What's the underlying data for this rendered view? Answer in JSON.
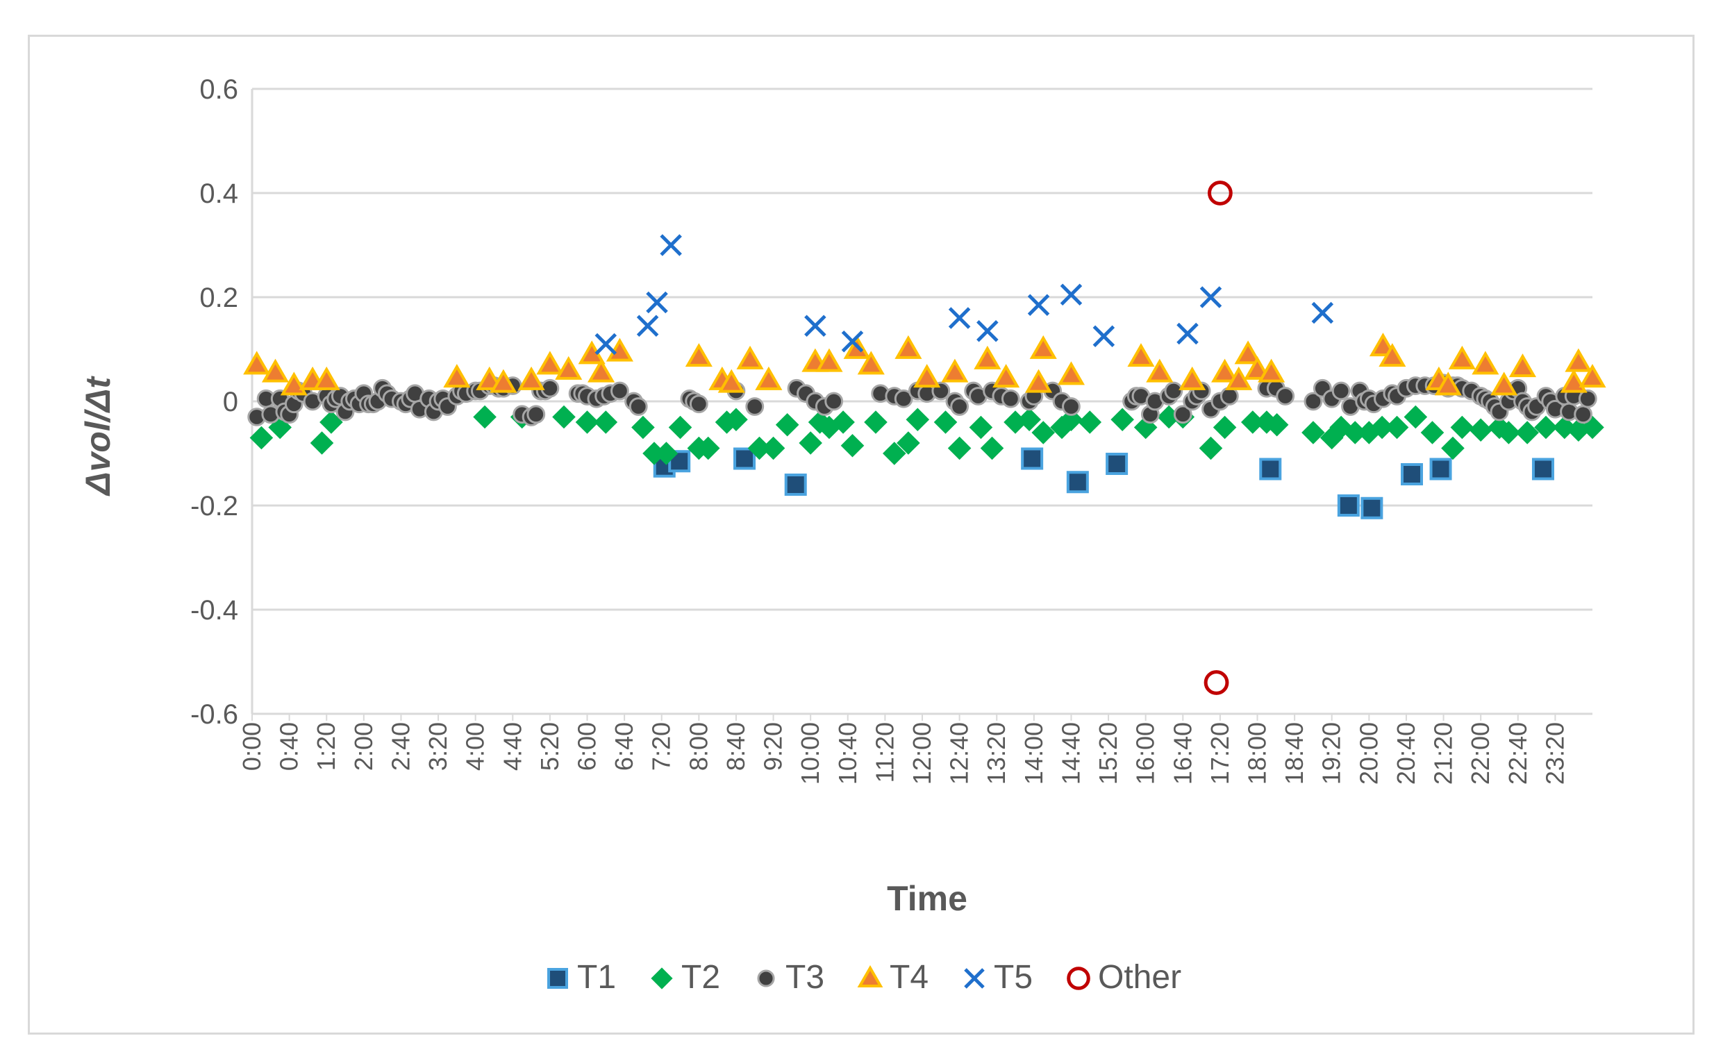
{
  "chart_data": {
    "type": "scatter",
    "xlabel": "Time",
    "ylabel": "Δvol/Δt",
    "x_unit": "minutes since 0:00",
    "xlim": [
      0,
      1440
    ],
    "ylim": [
      -0.6,
      0.6
    ],
    "y_ticks": [
      {
        "value": 0.6,
        "label": "0.6"
      },
      {
        "value": 0.4,
        "label": "0.4"
      },
      {
        "value": 0.2,
        "label": "0.2"
      },
      {
        "value": 0,
        "label": "0"
      },
      {
        "value": -0.2,
        "label": "-0.2"
      },
      {
        "value": -0.4,
        "label": "-0.4"
      },
      {
        "value": -0.6,
        "label": "-0.6"
      }
    ],
    "x_ticks": [
      "0:00",
      "0:40",
      "1:20",
      "2:00",
      "2:40",
      "3:20",
      "4:00",
      "4:40",
      "5:20",
      "6:00",
      "6:40",
      "7:20",
      "8:00",
      "8:40",
      "9:20",
      "10:00",
      "10:40",
      "11:20",
      "12:00",
      "12:40",
      "13:20",
      "14:00",
      "14:40",
      "15:20",
      "16:00",
      "16:40",
      "17:20",
      "18:00",
      "18:40",
      "19:20",
      "20:00",
      "20:40",
      "21:20",
      "22:00",
      "22:40",
      "23:20"
    ],
    "grid": true,
    "legend_position": "bottom",
    "series": [
      {
        "name": "T1",
        "marker": "square",
        "color": "#1f77b4",
        "x": [
          443,
          459,
          529,
          584,
          838,
          887,
          929,
          1094,
          1178,
          1203,
          1246,
          1277,
          1387
        ],
        "y": [
          -0.125,
          -0.115,
          -0.11,
          -0.16,
          -0.11,
          -0.155,
          -0.12,
          -0.13,
          -0.2,
          -0.205,
          -0.14,
          -0.13,
          -0.13
        ]
      },
      {
        "name": "T2",
        "marker": "diamond",
        "color": "#00b050",
        "x": [
          10,
          30,
          75,
          85,
          250,
          290,
          335,
          360,
          380,
          420,
          432,
          445,
          460,
          480,
          490,
          510,
          520,
          545,
          560,
          575,
          600,
          610,
          620,
          635,
          645,
          670,
          690,
          705,
          715,
          745,
          760,
          783,
          795,
          820,
          835,
          850,
          870,
          880,
          900,
          935,
          960,
          985,
          1000,
          1030,
          1045,
          1075,
          1090,
          1101,
          1140,
          1160,
          1170,
          1185,
          1200,
          1214,
          1230,
          1250,
          1268,
          1290,
          1300,
          1320,
          1340,
          1350,
          1370,
          1390,
          1410,
          1425,
          1440
        ],
        "y": [
          -0.07,
          -0.05,
          -0.08,
          -0.04,
          -0.03,
          -0.03,
          -0.03,
          -0.04,
          -0.04,
          -0.05,
          -0.1,
          -0.1,
          -0.05,
          -0.09,
          -0.09,
          -0.04,
          -0.035,
          -0.09,
          -0.09,
          -0.045,
          -0.08,
          -0.04,
          -0.05,
          -0.04,
          -0.085,
          -0.04,
          -0.1,
          -0.08,
          -0.035,
          -0.04,
          -0.09,
          -0.05,
          -0.09,
          -0.04,
          -0.035,
          -0.06,
          -0.05,
          -0.035,
          -0.04,
          -0.035,
          -0.05,
          -0.03,
          -0.03,
          -0.09,
          -0.05,
          -0.04,
          -0.04,
          -0.045,
          -0.06,
          -0.07,
          -0.05,
          -0.06,
          -0.06,
          -0.05,
          -0.05,
          -0.03,
          -0.06,
          -0.09,
          -0.05,
          -0.055,
          -0.05,
          -0.06,
          -0.06,
          -0.05,
          -0.05,
          -0.055,
          -0.05
        ]
      },
      {
        "name": "T3",
        "marker": "circle",
        "color": "#404040",
        "x": [
          5,
          15,
          20,
          30,
          35,
          40,
          45,
          50,
          55,
          65,
          80,
          85,
          90,
          95,
          100,
          105,
          110,
          115,
          120,
          125,
          130,
          135,
          140,
          145,
          150,
          160,
          165,
          170,
          175,
          180,
          190,
          195,
          200,
          205,
          210,
          220,
          225,
          230,
          240,
          245,
          255,
          260,
          265,
          270,
          280,
          290,
          300,
          305,
          310,
          315,
          320,
          350,
          355,
          360,
          370,
          378,
          385,
          395,
          410,
          415,
          470,
          475,
          480,
          520,
          540,
          585,
          595,
          605,
          615,
          625,
          675,
          690,
          700,
          715,
          725,
          740,
          755,
          760,
          775,
          780,
          795,
          805,
          815,
          835,
          840,
          860,
          870,
          880,
          945,
          950,
          955,
          965,
          970,
          985,
          990,
          1000,
          1010,
          1015,
          1020,
          1030,
          1040,
          1050,
          1090,
          1100,
          1110,
          1140,
          1150,
          1160,
          1170,
          1180,
          1190,
          1195,
          1200,
          1205,
          1215,
          1225,
          1230,
          1240,
          1250,
          1260,
          1270,
          1280,
          1285,
          1290,
          1295,
          1300,
          1310,
          1320,
          1325,
          1330,
          1335,
          1340,
          1350,
          1355,
          1360,
          1365,
          1370,
          1375,
          1380,
          1390,
          1395,
          1400,
          1410,
          1415,
          1420,
          1430,
          1435
        ],
        "y": [
          -0.03,
          0.005,
          -0.025,
          0.005,
          -0.02,
          -0.025,
          -0.005,
          0.02,
          0.015,
          0.0,
          0.01,
          -0.005,
          0.005,
          0.01,
          -0.02,
          0.0,
          0.005,
          -0.005,
          0.015,
          -0.005,
          -0.005,
          0.0,
          0.025,
          0.015,
          0.005,
          0.0,
          -0.005,
          0.005,
          0.015,
          -0.015,
          0.005,
          -0.02,
          0.0,
          0.005,
          -0.01,
          0.01,
          0.02,
          0.015,
          0.02,
          0.02,
          0.03,
          0.03,
          0.025,
          0.025,
          0.03,
          -0.025,
          -0.03,
          -0.025,
          0.02,
          0.02,
          0.025,
          0.015,
          0.015,
          0.01,
          0.005,
          0.01,
          0.015,
          0.02,
          0.0,
          -0.01,
          0.005,
          0.0,
          -0.005,
          0.02,
          -0.01,
          0.025,
          0.015,
          0.0,
          -0.01,
          0.0,
          0.015,
          0.01,
          0.005,
          0.02,
          0.015,
          0.02,
          0.0,
          -0.01,
          0.02,
          0.01,
          0.02,
          0.01,
          0.005,
          0.0,
          0.01,
          0.02,
          0.0,
          -0.01,
          0.0,
          0.01,
          0.01,
          -0.025,
          0.0,
          0.01,
          0.02,
          -0.025,
          0.0,
          0.01,
          0.02,
          -0.015,
          0.0,
          0.01,
          0.025,
          0.025,
          0.01,
          0.0,
          0.025,
          0.005,
          0.02,
          -0.01,
          0.02,
          0.0,
          0.005,
          -0.005,
          0.005,
          0.015,
          0.01,
          0.025,
          0.03,
          0.03,
          0.03,
          0.035,
          0.025,
          0.03,
          0.03,
          0.025,
          0.02,
          0.01,
          0.005,
          0.0,
          -0.01,
          -0.02,
          0.0,
          0.02,
          0.025,
          0.0,
          -0.01,
          -0.02,
          -0.01,
          0.01,
          0.0,
          -0.015,
          0.01,
          -0.02,
          0.01,
          -0.025,
          0.005
        ],
        "note": "approximate positions; dense cluster near zero"
      },
      {
        "name": "T4",
        "marker": "triangle",
        "color": "#ffc000",
        "x": [
          5,
          25,
          45,
          65,
          80,
          220,
          255,
          270,
          300,
          320,
          340,
          365,
          375,
          395,
          480,
          505,
          515,
          535,
          555,
          605,
          620,
          650,
          665,
          705,
          725,
          755,
          790,
          810,
          845,
          850,
          880,
          955,
          975,
          1010,
          1045,
          1060,
          1070,
          1080,
          1095,
          1215,
          1225,
          1275,
          1285,
          1300,
          1325,
          1345,
          1365,
          1420,
          1425,
          1440
        ],
        "y": [
          0.07,
          0.055,
          0.03,
          0.04,
          0.04,
          0.045,
          0.04,
          0.035,
          0.04,
          0.07,
          0.06,
          0.09,
          0.055,
          0.095,
          0.085,
          0.04,
          0.035,
          0.08,
          0.04,
          0.075,
          0.075,
          0.1,
          0.07,
          0.1,
          0.045,
          0.055,
          0.08,
          0.045,
          0.035,
          0.1,
          0.05,
          0.085,
          0.055,
          0.04,
          0.055,
          0.04,
          0.09,
          0.06,
          0.055,
          0.105,
          0.085,
          0.04,
          0.03,
          0.08,
          0.07,
          0.03,
          0.065,
          0.035,
          0.075,
          0.045
        ]
      },
      {
        "name": "T5",
        "marker": "x",
        "color": "#1f6fcc",
        "x": [
          380,
          425,
          435,
          450,
          605,
          645,
          760,
          790,
          845,
          880,
          915,
          1005,
          1030,
          1150
        ],
        "y": [
          0.11,
          0.145,
          0.19,
          0.3,
          0.145,
          0.115,
          0.16,
          0.135,
          0.185,
          0.205,
          0.125,
          0.13,
          0.2,
          0.17
        ]
      },
      {
        "name": "Other",
        "marker": "open-circle",
        "color": "#c00000",
        "x": [
          1040,
          1036
        ],
        "y": [
          0.4,
          -0.54
        ]
      }
    ]
  }
}
